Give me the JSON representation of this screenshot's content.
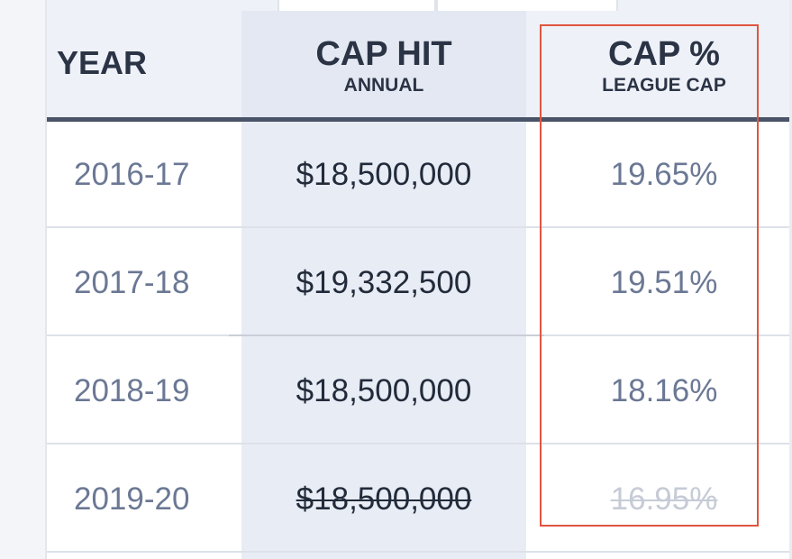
{
  "columns": {
    "year": {
      "label": "YEAR"
    },
    "cap_hit": {
      "label": "CAP HIT",
      "sublabel": "ANNUAL"
    },
    "cap_pct": {
      "label": "CAP %",
      "sublabel": "LEAGUE CAP"
    }
  },
  "rows": [
    {
      "year": "2016-17",
      "cap_hit": "$18,500,000",
      "cap_pct": "19.65%"
    },
    {
      "year": "2017-18",
      "cap_hit": "$19,332,500",
      "cap_pct": "19.51%"
    },
    {
      "year": "2018-19",
      "cap_hit": "$18,500,000",
      "cap_pct": "18.16%"
    },
    {
      "year": "2019-20",
      "cap_hit": "$18,500,000",
      "cap_pct": "16.95%"
    }
  ],
  "colors": {
    "header_bg": "#eef1f8",
    "header_rule": "#4a5468",
    "highlight": "#e0553f",
    "muted_text": "#6b7894"
  }
}
